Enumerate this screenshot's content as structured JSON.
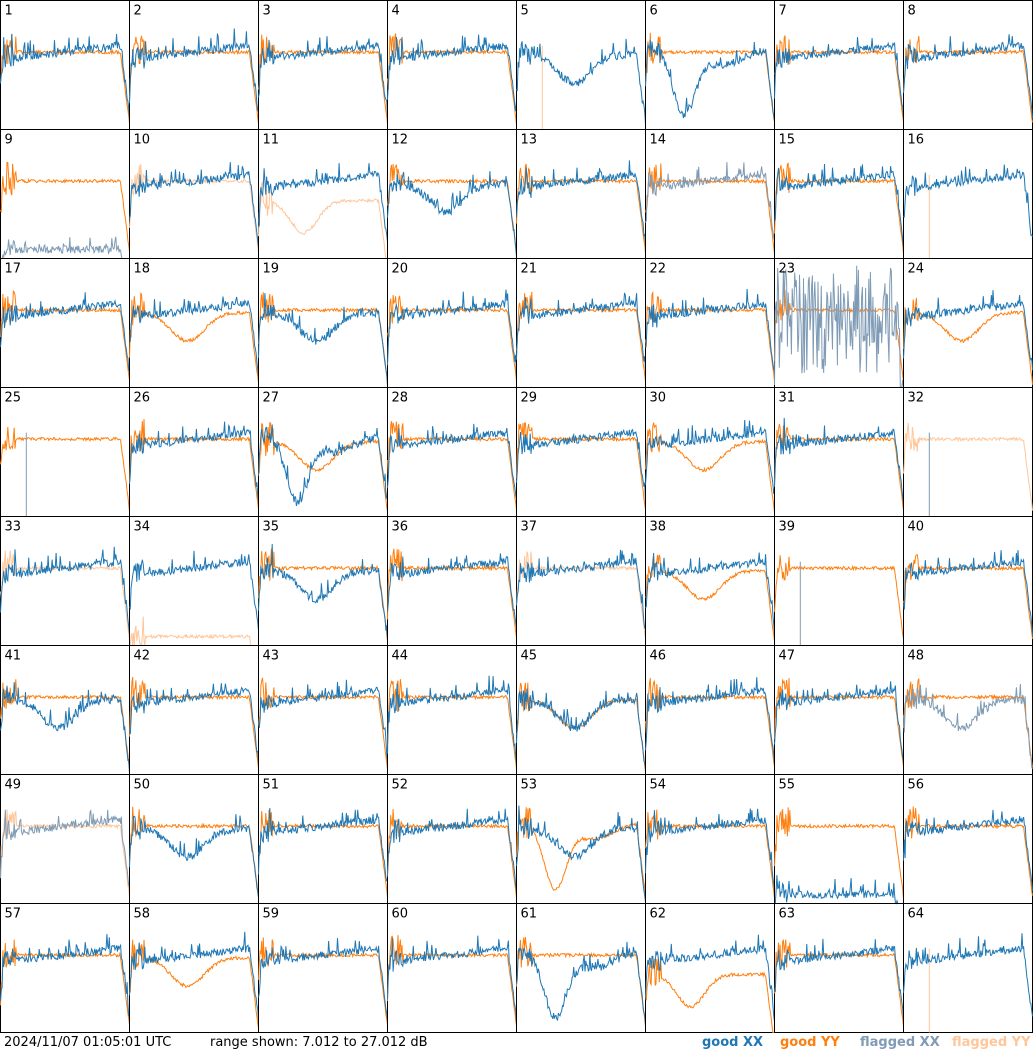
{
  "footer": {
    "timestamp": "2024/11/07 01:05:01 UTC",
    "range_text": "range shown: 7.012 to 27.012 dB"
  },
  "legend": [
    {
      "label": "good XX",
      "color": "#1f77b4"
    },
    {
      "label": "good YY",
      "color": "#ff7f0e"
    },
    {
      "label": "flagged XX",
      "color": "#7f9bb5"
    },
    {
      "label": "flagged YY",
      "color": "#ffc69a"
    }
  ],
  "chart_data": {
    "type": "line",
    "ylim": [
      7.012,
      27.012
    ],
    "grid": "8x8 small multiples",
    "panels": [
      {
        "id": "1",
        "xx": "good",
        "yy": "good",
        "xx_shape": "flat",
        "yy_shape": "flat"
      },
      {
        "id": "2",
        "xx": "good",
        "yy": "good",
        "xx_shape": "flat",
        "yy_shape": "flat"
      },
      {
        "id": "3",
        "xx": "good",
        "yy": "good",
        "xx_shape": "flat",
        "yy_shape": "flat"
      },
      {
        "id": "4",
        "xx": "good",
        "yy": "good",
        "xx_shape": "flat",
        "yy_shape": "flat"
      },
      {
        "id": "5",
        "xx": "good",
        "yy": "flagged",
        "xx_shape": "dip",
        "yy_shape": "absent"
      },
      {
        "id": "6",
        "xx": "good",
        "yy": "good",
        "xx_shape": "deepdip",
        "yy_shape": "flat"
      },
      {
        "id": "7",
        "xx": "good",
        "yy": "good",
        "xx_shape": "flat",
        "yy_shape": "flat"
      },
      {
        "id": "8",
        "xx": "good",
        "yy": "good",
        "xx_shape": "flat",
        "yy_shape": "flat"
      },
      {
        "id": "9",
        "xx": "flagged",
        "yy": "good",
        "xx_shape": "low",
        "yy_shape": "flat"
      },
      {
        "id": "10",
        "xx": "good",
        "yy": "flagged",
        "xx_shape": "flat",
        "yy_shape": "flat"
      },
      {
        "id": "11",
        "xx": "good",
        "yy": "flagged",
        "xx_shape": "flat",
        "yy_shape": "lowdip"
      },
      {
        "id": "12",
        "xx": "good",
        "yy": "good",
        "xx_shape": "dip",
        "yy_shape": "flat"
      },
      {
        "id": "13",
        "xx": "good",
        "yy": "good",
        "xx_shape": "flat",
        "yy_shape": "flat"
      },
      {
        "id": "14",
        "xx": "flagged",
        "yy": "good",
        "xx_shape": "flat",
        "yy_shape": "flat"
      },
      {
        "id": "15",
        "xx": "good",
        "yy": "good",
        "xx_shape": "flat",
        "yy_shape": "flat"
      },
      {
        "id": "16",
        "xx": "good",
        "yy": "flagged",
        "xx_shape": "flat",
        "yy_shape": "absent"
      },
      {
        "id": "17",
        "xx": "good",
        "yy": "good",
        "xx_shape": "flat",
        "yy_shape": "flat"
      },
      {
        "id": "18",
        "xx": "good",
        "yy": "good",
        "xx_shape": "flat",
        "yy_shape": "dip"
      },
      {
        "id": "19",
        "xx": "good",
        "yy": "good",
        "xx_shape": "dip",
        "yy_shape": "flat"
      },
      {
        "id": "20",
        "xx": "good",
        "yy": "good",
        "xx_shape": "flat",
        "yy_shape": "flat"
      },
      {
        "id": "21",
        "xx": "good",
        "yy": "good",
        "xx_shape": "flat",
        "yy_shape": "flat"
      },
      {
        "id": "22",
        "xx": "good",
        "yy": "good",
        "xx_shape": "flat",
        "yy_shape": "flat"
      },
      {
        "id": "23",
        "xx": "flagged",
        "yy": "good",
        "xx_shape": "noisy",
        "yy_shape": "flat"
      },
      {
        "id": "24",
        "xx": "good",
        "yy": "good",
        "xx_shape": "flat",
        "yy_shape": "dip"
      },
      {
        "id": "25",
        "xx": "flagged",
        "yy": "good",
        "xx_shape": "absent",
        "yy_shape": "flat"
      },
      {
        "id": "26",
        "xx": "good",
        "yy": "good",
        "xx_shape": "flat",
        "yy_shape": "flat"
      },
      {
        "id": "27",
        "xx": "good",
        "yy": "good",
        "xx_shape": "deepdip",
        "yy_shape": "dip"
      },
      {
        "id": "28",
        "xx": "good",
        "yy": "good",
        "xx_shape": "flat",
        "yy_shape": "flat"
      },
      {
        "id": "29",
        "xx": "good",
        "yy": "good",
        "xx_shape": "flat",
        "yy_shape": "flat"
      },
      {
        "id": "30",
        "xx": "good",
        "yy": "good",
        "xx_shape": "flat",
        "yy_shape": "dip"
      },
      {
        "id": "31",
        "xx": "good",
        "yy": "good",
        "xx_shape": "flat",
        "yy_shape": "flat"
      },
      {
        "id": "32",
        "xx": "flagged",
        "yy": "flagged",
        "xx_shape": "absent",
        "yy_shape": "flat"
      },
      {
        "id": "33",
        "xx": "good",
        "yy": "flagged",
        "xx_shape": "flat",
        "yy_shape": "flat"
      },
      {
        "id": "34",
        "xx": "good",
        "yy": "flagged",
        "xx_shape": "flat",
        "yy_shape": "low"
      },
      {
        "id": "35",
        "xx": "good",
        "yy": "good",
        "xx_shape": "dip",
        "yy_shape": "flat"
      },
      {
        "id": "36",
        "xx": "good",
        "yy": "good",
        "xx_shape": "flat",
        "yy_shape": "flat"
      },
      {
        "id": "37",
        "xx": "good",
        "yy": "flagged",
        "xx_shape": "flat",
        "yy_shape": "flat"
      },
      {
        "id": "38",
        "xx": "good",
        "yy": "good",
        "xx_shape": "flat",
        "yy_shape": "dip"
      },
      {
        "id": "39",
        "xx": "flagged",
        "yy": "good",
        "xx_shape": "absent",
        "yy_shape": "flat"
      },
      {
        "id": "40",
        "xx": "good",
        "yy": "good",
        "xx_shape": "flat",
        "yy_shape": "flat"
      },
      {
        "id": "41",
        "xx": "good",
        "yy": "good",
        "xx_shape": "dip",
        "yy_shape": "flat"
      },
      {
        "id": "42",
        "xx": "good",
        "yy": "good",
        "xx_shape": "flat",
        "yy_shape": "flat"
      },
      {
        "id": "43",
        "xx": "good",
        "yy": "good",
        "xx_shape": "flat",
        "yy_shape": "flat"
      },
      {
        "id": "44",
        "xx": "good",
        "yy": "good",
        "xx_shape": "flat",
        "yy_shape": "flat"
      },
      {
        "id": "45",
        "xx": "good",
        "yy": "good",
        "xx_shape": "dip",
        "yy_shape": "dip"
      },
      {
        "id": "46",
        "xx": "good",
        "yy": "good",
        "xx_shape": "flat",
        "yy_shape": "flat"
      },
      {
        "id": "47",
        "xx": "good",
        "yy": "good",
        "xx_shape": "flat",
        "yy_shape": "flat"
      },
      {
        "id": "48",
        "xx": "flagged",
        "yy": "good",
        "xx_shape": "dip",
        "yy_shape": "flat"
      },
      {
        "id": "49",
        "xx": "flagged",
        "yy": "flagged",
        "xx_shape": "flat",
        "yy_shape": "flat"
      },
      {
        "id": "50",
        "xx": "good",
        "yy": "good",
        "xx_shape": "dip",
        "yy_shape": "flat"
      },
      {
        "id": "51",
        "xx": "good",
        "yy": "good",
        "xx_shape": "flat",
        "yy_shape": "flat"
      },
      {
        "id": "52",
        "xx": "good",
        "yy": "good",
        "xx_shape": "flat",
        "yy_shape": "flat"
      },
      {
        "id": "53",
        "xx": "good",
        "yy": "good",
        "xx_shape": "dip",
        "yy_shape": "deepdip"
      },
      {
        "id": "54",
        "xx": "good",
        "yy": "good",
        "xx_shape": "flat",
        "yy_shape": "flat"
      },
      {
        "id": "55",
        "xx": "good",
        "yy": "good",
        "xx_shape": "low",
        "yy_shape": "flat"
      },
      {
        "id": "56",
        "xx": "good",
        "yy": "good",
        "xx_shape": "flat",
        "yy_shape": "flat"
      },
      {
        "id": "57",
        "xx": "good",
        "yy": "good",
        "xx_shape": "flat",
        "yy_shape": "flat"
      },
      {
        "id": "58",
        "xx": "good",
        "yy": "good",
        "xx_shape": "flat",
        "yy_shape": "dip"
      },
      {
        "id": "59",
        "xx": "good",
        "yy": "good",
        "xx_shape": "flat",
        "yy_shape": "flat"
      },
      {
        "id": "60",
        "xx": "good",
        "yy": "good",
        "xx_shape": "flat",
        "yy_shape": "flat"
      },
      {
        "id": "61",
        "xx": "good",
        "yy": "good",
        "xx_shape": "deepdip",
        "yy_shape": "flat"
      },
      {
        "id": "62",
        "xx": "good",
        "yy": "good",
        "xx_shape": "flat",
        "yy_shape": "lowdip"
      },
      {
        "id": "63",
        "xx": "good",
        "yy": "good",
        "xx_shape": "flat",
        "yy_shape": "flat"
      },
      {
        "id": "64",
        "xx": "good",
        "yy": "flagged",
        "xx_shape": "flat",
        "yy_shape": "absent"
      }
    ]
  }
}
